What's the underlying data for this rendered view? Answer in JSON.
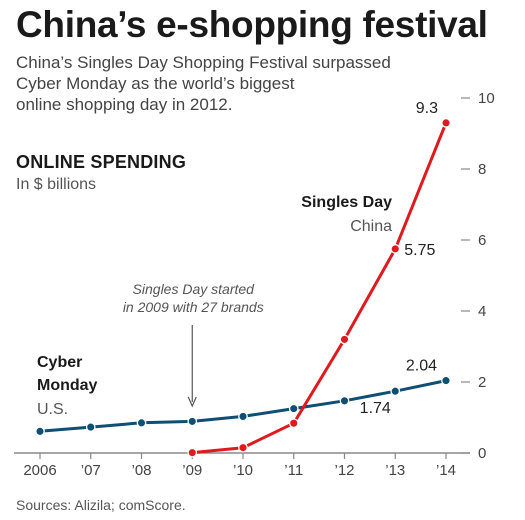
{
  "header": {
    "title": "China’s e-shopping festival",
    "subtitle_lines": [
      "China’s Singles Day Shopping Festival surpassed",
      "Cyber Monday as the world’s biggest",
      "online shopping day in 2012."
    ]
  },
  "footer": {
    "source": "Sources: Alizila; comScore."
  },
  "colors": {
    "singles_day": "#e0191f",
    "cyber_monday": "#0e4f73",
    "axis": "#888888"
  },
  "chart_data": {
    "type": "line",
    "title": "ONLINE SPENDING",
    "subtitle": "In $ billions",
    "x": [
      2006,
      2007,
      2008,
      2009,
      2010,
      2011,
      2012,
      2013,
      2014
    ],
    "x_tick_labels": [
      "2006",
      "’07",
      "’08",
      "’09",
      "’10",
      "’11",
      "’12",
      "’13",
      "’14"
    ],
    "y_ticks": [
      0,
      2,
      4,
      6,
      8,
      10
    ],
    "ylim": [
      0,
      10
    ],
    "grid": false,
    "series": [
      {
        "id": "cyber_monday",
        "name": "Cyber Monday",
        "name_lines": [
          "Cyber",
          "Monday"
        ],
        "region": "U.S.",
        "x": [
          2006,
          2007,
          2008,
          2009,
          2010,
          2011,
          2012,
          2013,
          2014
        ],
        "values": [
          0.61,
          0.73,
          0.85,
          0.89,
          1.03,
          1.25,
          1.47,
          1.74,
          2.04
        ]
      },
      {
        "id": "singles_day",
        "name": "Singles Day",
        "name_lines": [
          "Singles Day"
        ],
        "region": "China",
        "x": [
          2009,
          2010,
          2011,
          2012,
          2013,
          2014
        ],
        "values": [
          0.01,
          0.15,
          0.84,
          3.2,
          5.75,
          9.3
        ]
      }
    ],
    "data_labels": [
      {
        "series": "singles_day",
        "x": 2014,
        "text": "9.3"
      },
      {
        "series": "singles_day",
        "x": 2013,
        "text": "5.75"
      },
      {
        "series": "cyber_monday",
        "x": 2014,
        "text": "2.04"
      },
      {
        "series": "cyber_monday",
        "x": 2013,
        "text": "1.74"
      }
    ],
    "annotation": {
      "lines": [
        "Singles Day started",
        "in 2009 with 27 brands"
      ],
      "x": 2009
    }
  }
}
